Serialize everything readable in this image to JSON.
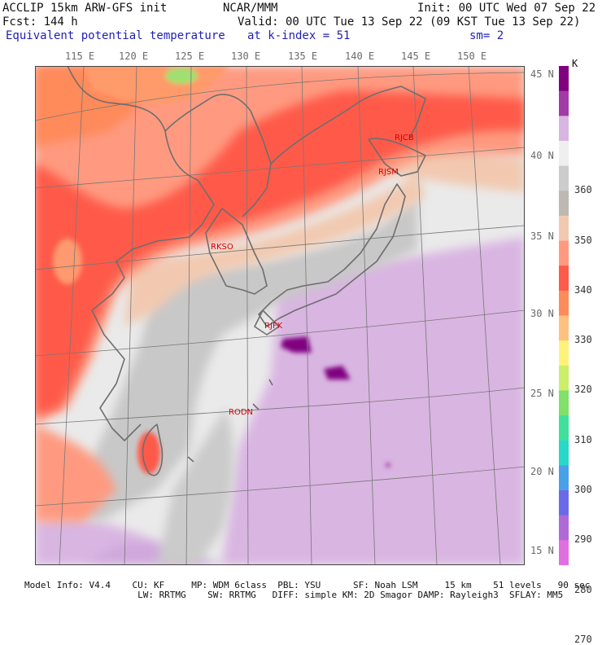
{
  "header": {
    "model": "ACCLIP 15km ARW-GFS init",
    "forecast": "Fcst:  144 h",
    "org": "NCAR/MMM",
    "init": "Init: 00 UTC Wed 07 Sep 22",
    "valid": "Valid: 00 UTC Tue 13 Sep 22 (09 KST Tue 13 Sep 22)",
    "field": "Equivalent potential temperature",
    "level": "at k-index =  51",
    "smooth": "sm= 2"
  },
  "map": {
    "lon_labels": [
      "115 E",
      "120 E",
      "125 E",
      "130 E",
      "135 E",
      "140 E",
      "145 E",
      "150 E"
    ],
    "lat_labels": [
      "45 N",
      "40 N",
      "35 N",
      "30 N",
      "25 N",
      "20 N",
      "15 N"
    ],
    "stations": [
      {
        "id": "RJCB",
        "lon": 143.2,
        "lat": 42.7
      },
      {
        "id": "RJSM",
        "lon": 141.4,
        "lat": 40.6
      },
      {
        "id": "RKSO",
        "lon": 127.0,
        "lat": 37.1
      },
      {
        "id": "RJFK",
        "lon": 130.7,
        "lat": 31.8
      },
      {
        "id": "RODN",
        "lon": 127.8,
        "lat": 26.4
      }
    ]
  },
  "colorbar": {
    "unit": "K",
    "labels": [
      "360",
      "350",
      "340",
      "330",
      "320",
      "310",
      "300",
      "290",
      "280",
      "270"
    ],
    "colors": [
      "#800080",
      "#a23aa8",
      "#d9b5e2",
      "#efefef",
      "#cccccc",
      "#bdb8b2",
      "#f2c9b0",
      "#ff9a80",
      "#ff5a4a",
      "#ff8a5a",
      "#ffc080",
      "#fff27a",
      "#cbef6a",
      "#7fe06a",
      "#3fe09a",
      "#28d8c8",
      "#4aa0e8",
      "#6a6ae8",
      "#b06ad8",
      "#e070e0"
    ]
  },
  "footer": {
    "line1": "Model Info: V4.4    CU: KF     MP: WDM 6class  PBL: YSU      SF: Noah LSM     15 km    51 levels   90 sec",
    "line2": "                     LW: RRTMG    SW: RRTMG   DIFF: simple KM: 2D Smagor DAMP: Rayleigh3  SFLAY: MM5"
  }
}
